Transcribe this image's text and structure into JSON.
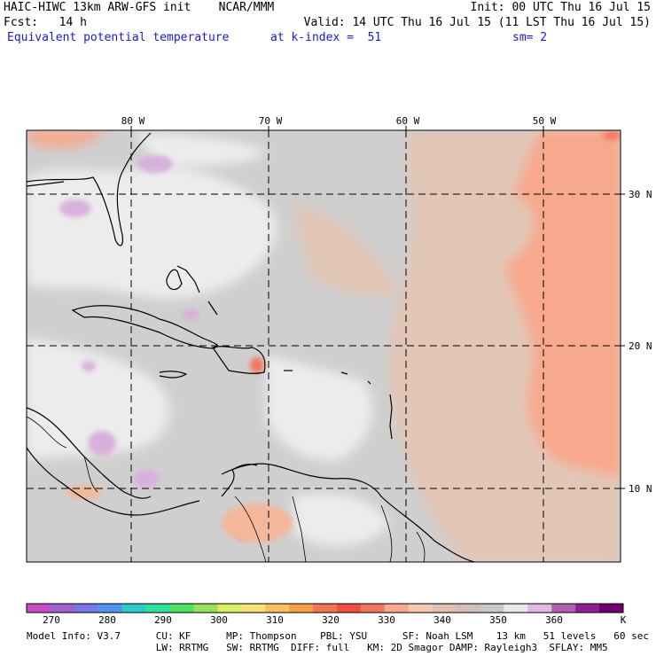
{
  "header": {
    "model_title": "HAIC-HIWC 13km ARW-GFS init    NCAR/MMM",
    "init": "Init: 00 UTC Thu 16 Jul 15",
    "fcst": "Fcst:   14 h",
    "valid": "Valid: 14 UTC Thu 16 Jul 15 (11 LST Thu 16 Jul 15)",
    "field": "Equivalent potential temperature",
    "level": "at k-index =  51",
    "smooth": "sm= 2"
  },
  "map": {
    "lon_labels": [
      "80 W",
      "70 W",
      "60 W",
      "50 W"
    ],
    "lat_labels": [
      "30 N",
      "20 N",
      "10 N"
    ],
    "lon_range_deg_west": [
      87.5,
      44.5
    ],
    "lat_range_deg_north": [
      5,
      35
    ]
  },
  "colorbar": {
    "labels": [
      "270",
      "280",
      "290",
      "300",
      "310",
      "320",
      "330",
      "340",
      "350",
      "360",
      "K"
    ],
    "colors": [
      "#c84cc8",
      "#a060d0",
      "#7878e8",
      "#5096f0",
      "#30c8c8",
      "#30e0a0",
      "#50e060",
      "#98e060",
      "#d8f060",
      "#f8e078",
      "#f8c060",
      "#f8a048",
      "#f07850",
      "#f05040",
      "#f07860",
      "#f8a890",
      "#f8c8b0",
      "#e0c0b0",
      "#d0c0b8",
      "#c8c8c8",
      "#e8e8e8",
      "#e0b8e0",
      "#b060b0",
      "#902090",
      "#700070"
    ]
  },
  "footer": {
    "line1": "Model Info: V3.7      CU: KF      MP: Thompson    PBL: YSU      SF: Noah LSM    13 km   51 levels   60 sec",
    "line2": "                      LW: RRTMG   SW: RRTMG  DIFF: full   KM: 2D Smagor DAMP: Rayleigh3  SFLAY: MM5"
  }
}
